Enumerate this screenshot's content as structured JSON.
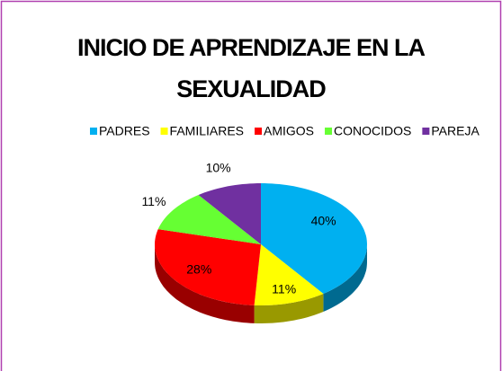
{
  "chart_data": {
    "type": "pie3d",
    "title": "INICIO DE APRENDIZAJE EN LA SEXUALIDAD",
    "categories": [
      "PADRES",
      "FAMILIARES",
      "AMIGOS",
      "CONOCIDOS",
      "PAREJA"
    ],
    "values": [
      40,
      11,
      28,
      11,
      10
    ],
    "value_labels": [
      "40%",
      "11%",
      "28%",
      "11%",
      "10%"
    ],
    "colors": [
      "#00b0f0",
      "#ffff00",
      "#ff0000",
      "#66ff33",
      "#7030a0"
    ],
    "legend": "top"
  }
}
